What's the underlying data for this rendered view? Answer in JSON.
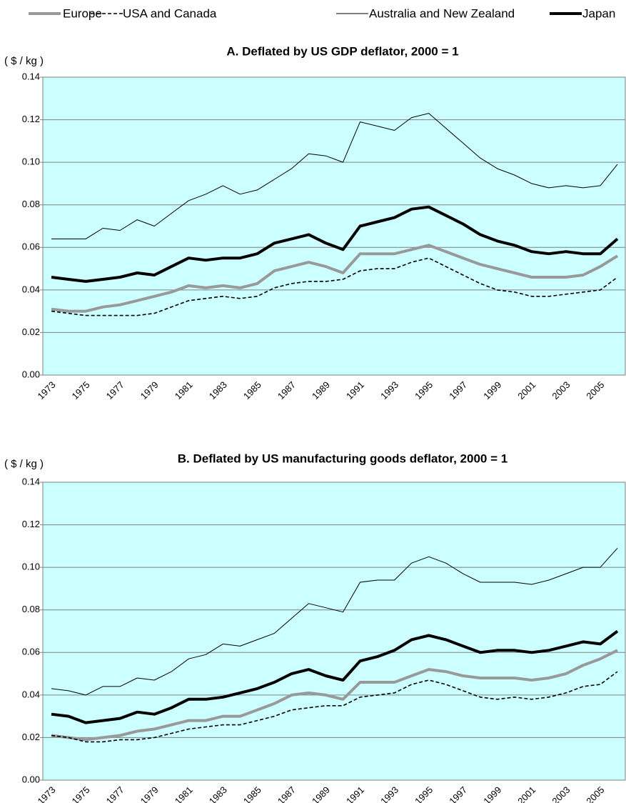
{
  "chart_data": [
    {
      "type": "line",
      "title": "A. Deflated by US GDP deflator, 2000 = 1",
      "y_label": "( $ / kg )",
      "categories": [
        "1973",
        null,
        "1975",
        null,
        "1977",
        null,
        "1979",
        null,
        "1981",
        null,
        "1983",
        null,
        "1985",
        null,
        "1987",
        null,
        "1989",
        null,
        "1991",
        null,
        "1993",
        null,
        "1995",
        null,
        "1997",
        null,
        "1999",
        null,
        "2001",
        null,
        "2003",
        null,
        "2005",
        null
      ],
      "ylim": [
        0,
        0.14
      ],
      "yticks": [
        {
          "value": 0,
          "label": "0.00"
        },
        {
          "value": 0.02,
          "label": "0.02"
        },
        {
          "value": 0.04,
          "label": "0.04"
        },
        {
          "value": 0.06,
          "label": "0.06"
        },
        {
          "value": 0.08,
          "label": "0.08"
        },
        {
          "value": 0.1,
          "label": "0.10"
        },
        {
          "value": 0.12,
          "label": "0.12"
        },
        {
          "value": 0.14,
          "label": "0.14"
        }
      ],
      "grid": true,
      "background": "#ccffff",
      "series": [
        {
          "name": "Europe",
          "color": "#999999",
          "width": 4,
          "dashed": false,
          "values": [
            0.031,
            0.03,
            0.03,
            0.032,
            0.033,
            0.035,
            0.037,
            0.039,
            0.042,
            0.041,
            0.042,
            0.041,
            0.043,
            0.049,
            0.051,
            0.053,
            0.051,
            0.048,
            0.057,
            0.057,
            0.057,
            0.059,
            0.061,
            0.058,
            0.055,
            0.052,
            0.05,
            0.048,
            0.046,
            0.046,
            0.046,
            0.047,
            0.051,
            0.056
          ]
        },
        {
          "name": "USA and Canada",
          "color": "#000000",
          "width": 1.6,
          "dashed": true,
          "values": [
            0.03,
            0.029,
            0.028,
            0.028,
            0.028,
            0.028,
            0.029,
            0.032,
            0.035,
            0.036,
            0.037,
            0.036,
            0.037,
            0.041,
            0.043,
            0.044,
            0.044,
            0.045,
            0.049,
            0.05,
            0.05,
            0.053,
            0.055,
            0.051,
            0.047,
            0.043,
            0.04,
            0.039,
            0.037,
            0.037,
            0.038,
            0.039,
            0.04,
            0.046
          ]
        },
        {
          "name": "Australia and New Zealand",
          "color": "#000000",
          "width": 1,
          "dashed": false,
          "values": [
            0.064,
            0.064,
            0.064,
            0.069,
            0.068,
            0.073,
            0.07,
            0.076,
            0.082,
            0.085,
            0.089,
            0.085,
            0.087,
            0.092,
            0.097,
            0.104,
            0.103,
            0.1,
            0.119,
            0.117,
            0.115,
            0.121,
            0.123,
            0.116,
            0.109,
            0.102,
            0.097,
            0.094,
            0.09,
            0.088,
            0.089,
            0.088,
            0.089,
            0.099
          ]
        },
        {
          "name": "Japan",
          "color": "#000000",
          "width": 4,
          "dashed": false,
          "values": [
            0.046,
            0.045,
            0.044,
            0.045,
            0.046,
            0.048,
            0.047,
            0.051,
            0.055,
            0.054,
            0.055,
            0.055,
            0.057,
            0.062,
            0.064,
            0.066,
            0.062,
            0.059,
            0.07,
            0.072,
            0.074,
            0.078,
            0.079,
            0.075,
            0.071,
            0.066,
            0.063,
            0.061,
            0.058,
            0.057,
            0.058,
            0.057,
            0.057,
            0.064
          ]
        }
      ]
    },
    {
      "type": "line",
      "title": "B. Deflated by US manufacturing goods deflator, 2000 = 1",
      "y_label": "( $ / kg )",
      "categories": [
        "1973",
        null,
        "1975",
        null,
        "1977",
        null,
        "1979",
        null,
        "1981",
        null,
        "1983",
        null,
        "1985",
        null,
        "1987",
        null,
        "1989",
        null,
        "1991",
        null,
        "1993",
        null,
        "1995",
        null,
        "1997",
        null,
        "1999",
        null,
        "2001",
        null,
        "2003",
        null,
        "2005",
        null
      ],
      "ylim": [
        0,
        0.14
      ],
      "yticks": [
        {
          "value": 0,
          "label": "0.00"
        },
        {
          "value": 0.02,
          "label": "0.02"
        },
        {
          "value": 0.04,
          "label": "0.04"
        },
        {
          "value": 0.06,
          "label": "0.06"
        },
        {
          "value": 0.08,
          "label": "0.08"
        },
        {
          "value": 0.1,
          "label": "0.10"
        },
        {
          "value": 0.12,
          "label": "0.12"
        },
        {
          "value": 0.14,
          "label": "0.14"
        }
      ],
      "grid": true,
      "background": "#ccffff",
      "series": [
        {
          "color": "#999999",
          "width": 4,
          "dashed": false,
          "values": [
            0.021,
            0.02,
            0.019,
            0.02,
            0.021,
            0.023,
            0.024,
            0.026,
            0.028,
            0.028,
            0.03,
            0.03,
            0.033,
            0.036,
            0.04,
            0.041,
            0.04,
            0.038,
            0.046,
            0.046,
            0.046,
            0.049,
            0.052,
            0.051,
            0.049,
            0.048,
            0.048,
            0.048,
            0.047,
            0.048,
            0.05,
            0.054,
            0.057,
            0.061
          ]
        },
        {
          "color": "#000000",
          "width": 1.6,
          "dashed": true,
          "values": [
            0.021,
            0.02,
            0.018,
            0.018,
            0.019,
            0.019,
            0.02,
            0.022,
            0.024,
            0.025,
            0.026,
            0.026,
            0.028,
            0.03,
            0.033,
            0.034,
            0.035,
            0.035,
            0.039,
            0.04,
            0.041,
            0.045,
            0.047,
            0.045,
            0.042,
            0.039,
            0.038,
            0.039,
            0.038,
            0.039,
            0.041,
            0.044,
            0.045,
            0.051
          ]
        },
        {
          "color": "#000000",
          "width": 1,
          "dashed": false,
          "values": [
            0.043,
            0.042,
            0.04,
            0.044,
            0.044,
            0.048,
            0.047,
            0.051,
            0.057,
            0.059,
            0.064,
            0.063,
            0.066,
            0.069,
            0.076,
            0.083,
            0.081,
            0.079,
            0.093,
            0.094,
            0.094,
            0.102,
            0.105,
            0.102,
            0.097,
            0.093,
            0.093,
            0.093,
            0.092,
            0.094,
            0.097,
            0.1,
            0.1,
            0.109
          ]
        },
        {
          "color": "#000000",
          "width": 4,
          "dashed": false,
          "values": [
            0.031,
            0.03,
            0.027,
            0.028,
            0.029,
            0.032,
            0.031,
            0.034,
            0.038,
            0.038,
            0.039,
            0.041,
            0.043,
            0.046,
            0.05,
            0.052,
            0.049,
            0.047,
            0.056,
            0.058,
            0.061,
            0.066,
            0.068,
            0.066,
            0.063,
            0.06,
            0.061,
            0.061,
            0.06,
            0.061,
            0.063,
            0.065,
            0.064,
            0.07
          ]
        }
      ]
    }
  ]
}
